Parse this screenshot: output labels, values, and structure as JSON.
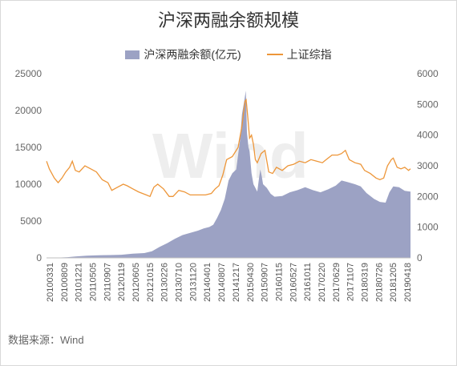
{
  "chart_data": {
    "type": "area+line",
    "title": "沪深两融余额规模",
    "source": "数据来源：Wind",
    "watermark": "Wind",
    "legend_position": "top",
    "grid": false,
    "left_axis": {
      "range": [
        0,
        25000
      ],
      "ticks": [
        "0",
        "5000",
        "10000",
        "15000",
        "20000",
        "25000"
      ]
    },
    "right_axis": {
      "range": [
        0,
        6000
      ],
      "ticks": [
        "0",
        "1000",
        "2000",
        "3000",
        "4000",
        "5000",
        "6000"
      ]
    },
    "x_range": [
      2010.247,
      2019.75
    ],
    "x_tick_labels": [
      "20100331",
      "20100809",
      "20101221",
      "20110505",
      "20110907",
      "20120119",
      "20120605",
      "20121015",
      "20130226",
      "20130710",
      "20131120",
      "20140401",
      "20140807",
      "20141217",
      "20150430",
      "20150907",
      "20160115",
      "20160527",
      "20161011",
      "20170220",
      "20170629",
      "20171107",
      "20180319",
      "20180726",
      "20181205",
      "20190418"
    ],
    "series": [
      {
        "name": "沪深两融余额(亿元)",
        "axis": "left",
        "color": "#9ca2c4",
        "points": [
          [
            2010.25,
            0
          ],
          [
            2010.5,
            30
          ],
          [
            2010.8,
            100
          ],
          [
            2011.0,
            200
          ],
          [
            2011.3,
            300
          ],
          [
            2011.6,
            360
          ],
          [
            2011.9,
            380
          ],
          [
            2012.2,
            420
          ],
          [
            2012.5,
            560
          ],
          [
            2012.8,
            650
          ],
          [
            2013.0,
            900
          ],
          [
            2013.2,
            1500
          ],
          [
            2013.4,
            2000
          ],
          [
            2013.6,
            2600
          ],
          [
            2013.8,
            3100
          ],
          [
            2014.0,
            3400
          ],
          [
            2014.2,
            3700
          ],
          [
            2014.35,
            4000
          ],
          [
            2014.5,
            4200
          ],
          [
            2014.6,
            4500
          ],
          [
            2014.7,
            5400
          ],
          [
            2014.8,
            6500
          ],
          [
            2014.9,
            8000
          ],
          [
            2015.0,
            10500
          ],
          [
            2015.1,
            11500
          ],
          [
            2015.2,
            12000
          ],
          [
            2015.3,
            16000
          ],
          [
            2015.35,
            19500
          ],
          [
            2015.4,
            21000
          ],
          [
            2015.45,
            22700
          ],
          [
            2015.48,
            17000
          ],
          [
            2015.52,
            15000
          ],
          [
            2015.55,
            14500
          ],
          [
            2015.6,
            11500
          ],
          [
            2015.65,
            10000
          ],
          [
            2015.7,
            9500
          ],
          [
            2015.75,
            9000
          ],
          [
            2015.8,
            11000
          ],
          [
            2015.83,
            12000
          ],
          [
            2015.87,
            11000
          ],
          [
            2015.9,
            10000
          ],
          [
            2016.0,
            9500
          ],
          [
            2016.1,
            8700
          ],
          [
            2016.2,
            8300
          ],
          [
            2016.4,
            8400
          ],
          [
            2016.6,
            8900
          ],
          [
            2016.8,
            9200
          ],
          [
            2017.0,
            9600
          ],
          [
            2017.2,
            9200
          ],
          [
            2017.4,
            8900
          ],
          [
            2017.6,
            9300
          ],
          [
            2017.8,
            9800
          ],
          [
            2017.95,
            10500
          ],
          [
            2018.1,
            10300
          ],
          [
            2018.3,
            10000
          ],
          [
            2018.45,
            9700
          ],
          [
            2018.6,
            8800
          ],
          [
            2018.8,
            8000
          ],
          [
            2018.95,
            7600
          ],
          [
            2019.1,
            7500
          ],
          [
            2019.2,
            8900
          ],
          [
            2019.3,
            9700
          ],
          [
            2019.45,
            9600
          ],
          [
            2019.6,
            9100
          ],
          [
            2019.75,
            9000
          ]
        ]
      },
      {
        "name": "上证综指",
        "axis": "right",
        "color": "#ed9639",
        "points": [
          [
            2010.25,
            3150
          ],
          [
            2010.32,
            2900
          ],
          [
            2010.45,
            2600
          ],
          [
            2010.55,
            2450
          ],
          [
            2010.65,
            2600
          ],
          [
            2010.75,
            2800
          ],
          [
            2010.85,
            2950
          ],
          [
            2010.92,
            3150
          ],
          [
            2011.0,
            2850
          ],
          [
            2011.1,
            2800
          ],
          [
            2011.25,
            3000
          ],
          [
            2011.4,
            2900
          ],
          [
            2011.55,
            2800
          ],
          [
            2011.7,
            2550
          ],
          [
            2011.85,
            2450
          ],
          [
            2011.95,
            2200
          ],
          [
            2012.1,
            2300
          ],
          [
            2012.25,
            2400
          ],
          [
            2012.35,
            2350
          ],
          [
            2012.5,
            2250
          ],
          [
            2012.65,
            2150
          ],
          [
            2012.85,
            2050
          ],
          [
            2012.95,
            2000
          ],
          [
            2013.05,
            2300
          ],
          [
            2013.15,
            2400
          ],
          [
            2013.3,
            2250
          ],
          [
            2013.45,
            2000
          ],
          [
            2013.55,
            2000
          ],
          [
            2013.7,
            2200
          ],
          [
            2013.85,
            2150
          ],
          [
            2014.0,
            2050
          ],
          [
            2014.2,
            2050
          ],
          [
            2014.4,
            2050
          ],
          [
            2014.55,
            2100
          ],
          [
            2014.65,
            2250
          ],
          [
            2014.75,
            2350
          ],
          [
            2014.85,
            2700
          ],
          [
            2014.95,
            3200
          ],
          [
            2015.1,
            3300
          ],
          [
            2015.25,
            3600
          ],
          [
            2015.35,
            4300
          ],
          [
            2015.43,
            5100
          ],
          [
            2015.46,
            5150
          ],
          [
            2015.5,
            4600
          ],
          [
            2015.55,
            3900
          ],
          [
            2015.6,
            4000
          ],
          [
            2015.65,
            3700
          ],
          [
            2015.7,
            3200
          ],
          [
            2015.75,
            3100
          ],
          [
            2015.85,
            3400
          ],
          [
            2015.95,
            3500
          ],
          [
            2016.05,
            2800
          ],
          [
            2016.15,
            2750
          ],
          [
            2016.25,
            2950
          ],
          [
            2016.4,
            2850
          ],
          [
            2016.55,
            3000
          ],
          [
            2016.7,
            3050
          ],
          [
            2016.85,
            3150
          ],
          [
            2017.0,
            3100
          ],
          [
            2017.15,
            3200
          ],
          [
            2017.3,
            3150
          ],
          [
            2017.45,
            3100
          ],
          [
            2017.55,
            3200
          ],
          [
            2017.7,
            3350
          ],
          [
            2017.85,
            3350
          ],
          [
            2017.95,
            3400
          ],
          [
            2018.05,
            3500
          ],
          [
            2018.15,
            3200
          ],
          [
            2018.3,
            3100
          ],
          [
            2018.45,
            3050
          ],
          [
            2018.55,
            2850
          ],
          [
            2018.7,
            2750
          ],
          [
            2018.85,
            2600
          ],
          [
            2018.95,
            2550
          ],
          [
            2019.05,
            2600
          ],
          [
            2019.15,
            3000
          ],
          [
            2019.25,
            3200
          ],
          [
            2019.3,
            3250
          ],
          [
            2019.4,
            2950
          ],
          [
            2019.5,
            2900
          ],
          [
            2019.6,
            2950
          ],
          [
            2019.7,
            2850
          ],
          [
            2019.75,
            2900
          ]
        ]
      }
    ]
  }
}
